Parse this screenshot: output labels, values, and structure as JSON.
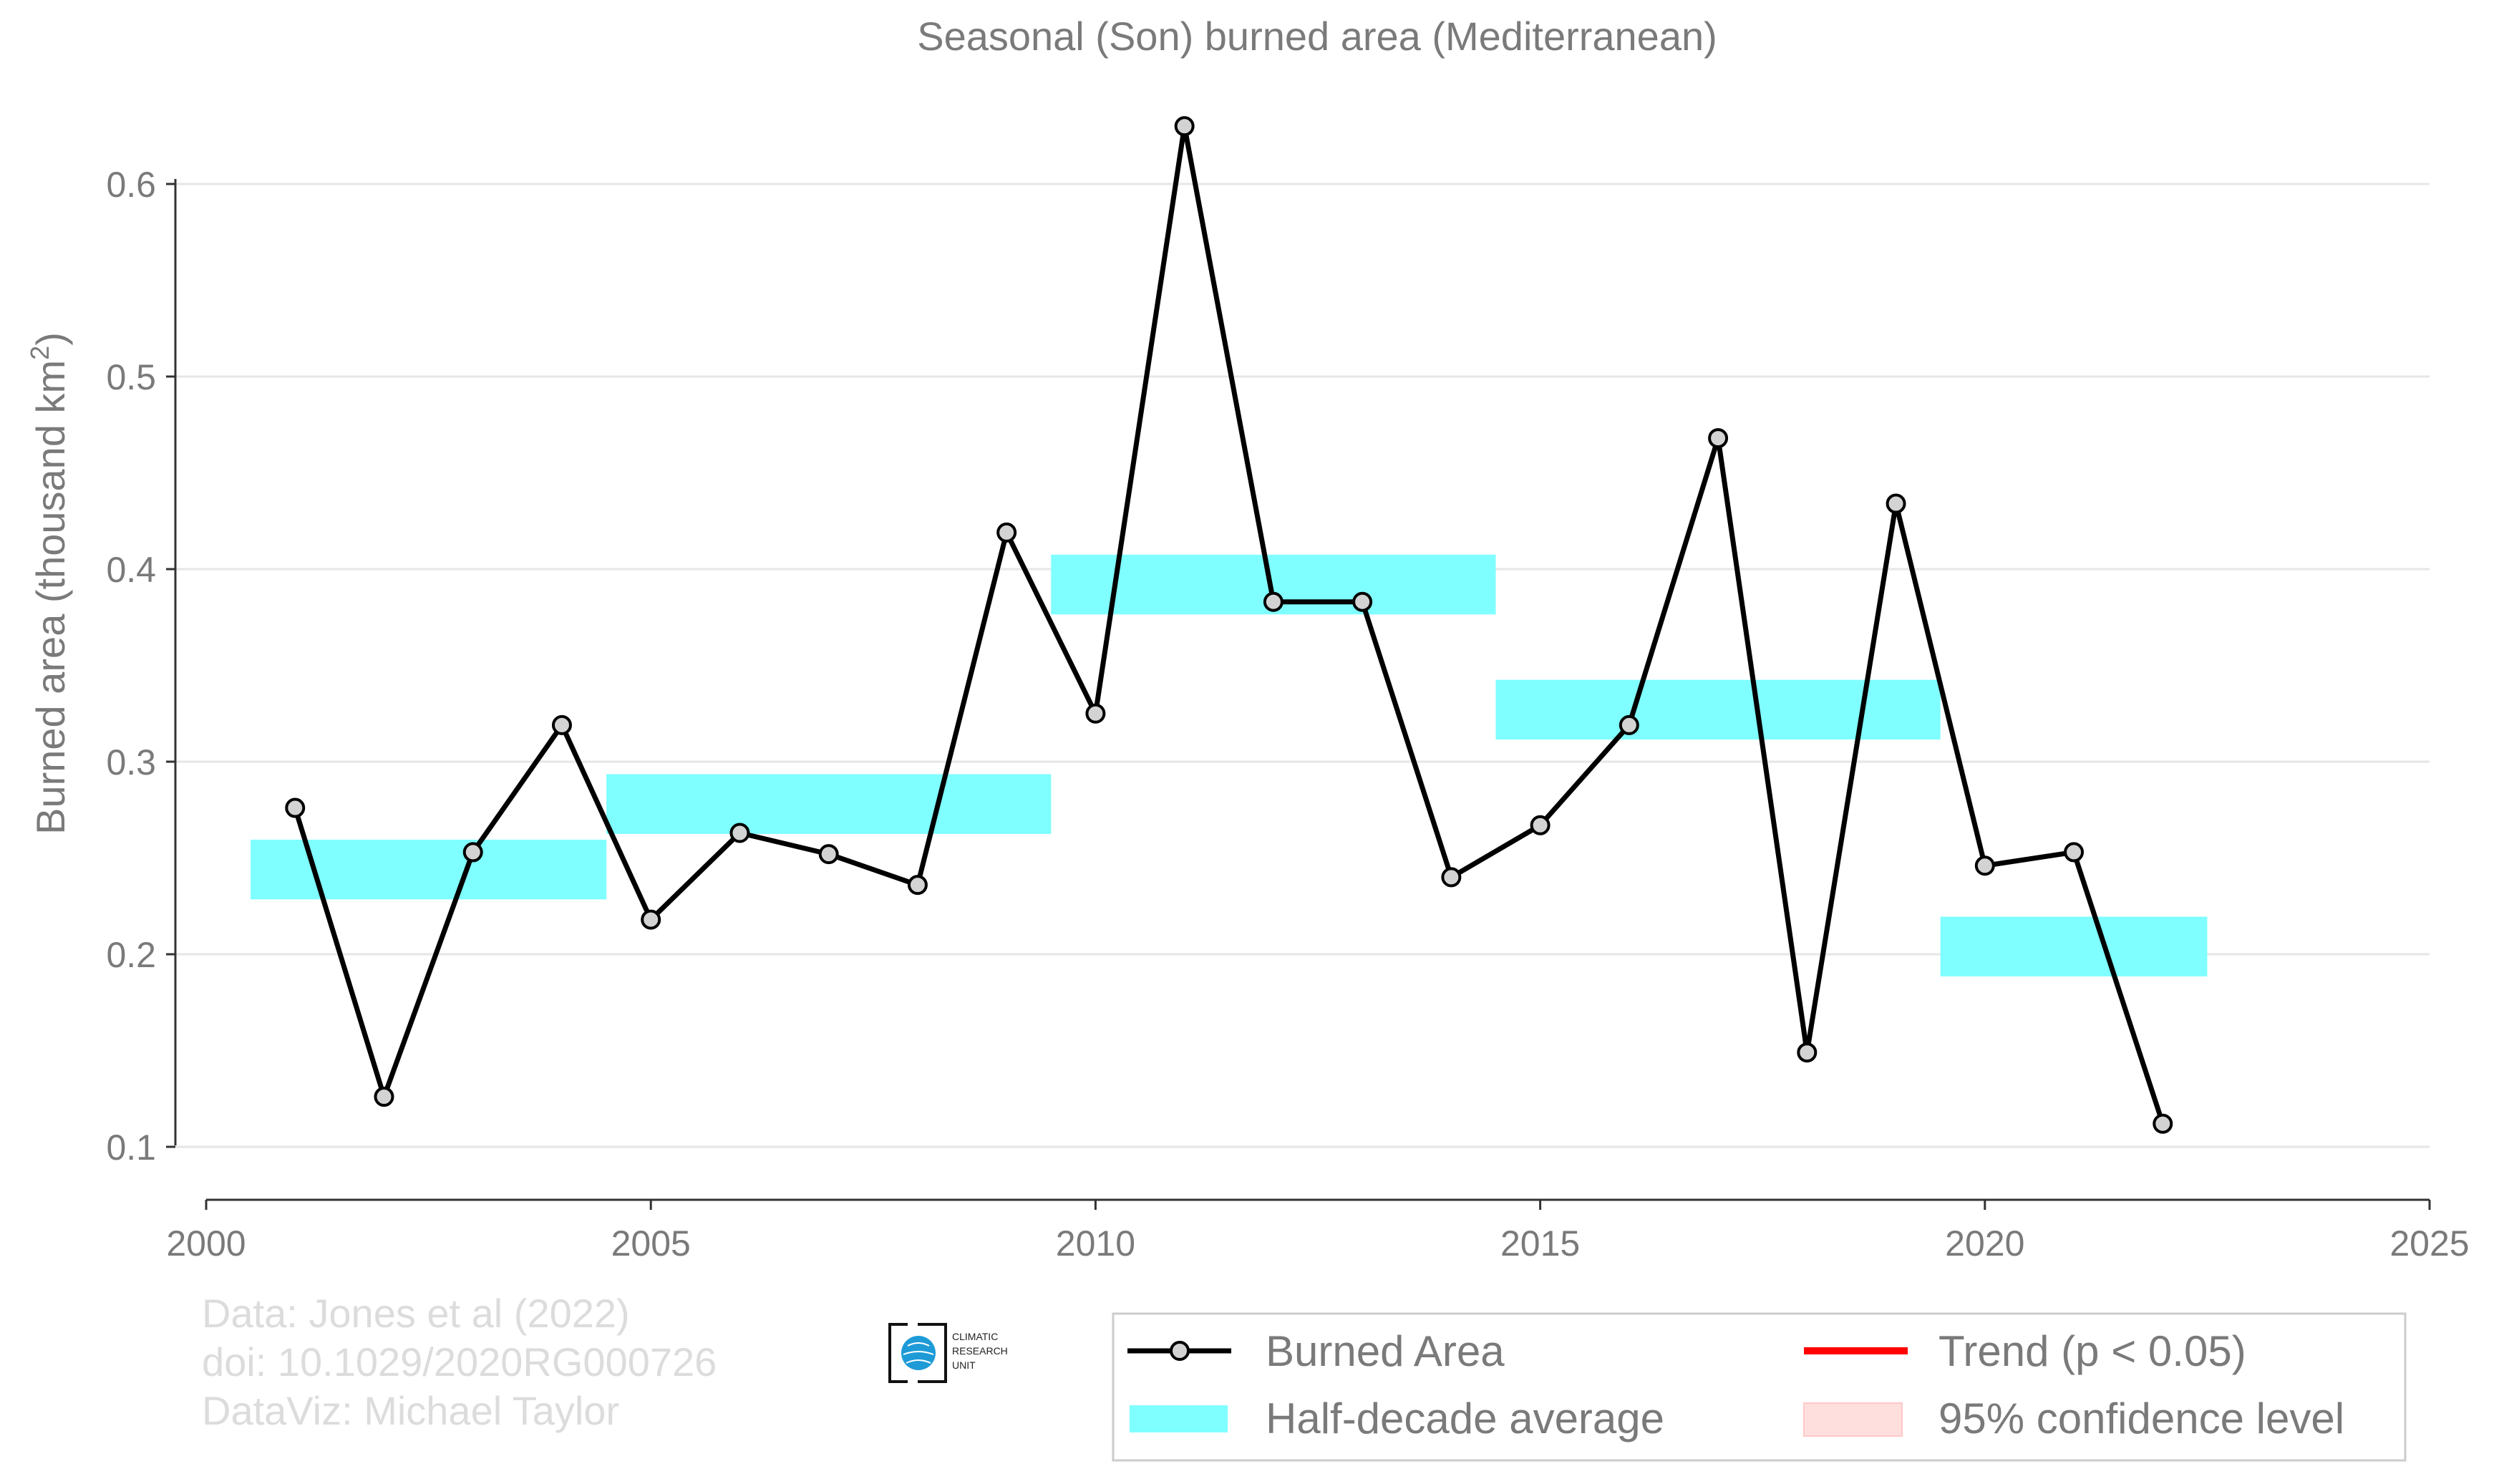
{
  "chart_data": {
    "type": "line",
    "title": "Seasonal (Son) burned area (Mediterranean)",
    "xlabel": "",
    "ylabel": "Burned area (thousand km",
    "ylabel_sup": "2",
    "ylabel_close": ")",
    "xlim": [
      2000,
      2025
    ],
    "ylim": [
      0.07,
      0.67
    ],
    "x_ticks": [
      2000,
      2005,
      2010,
      2015,
      2020,
      2025
    ],
    "y_ticks": [
      0.1,
      0.2,
      0.3,
      0.4,
      0.5,
      0.6
    ],
    "y_tick_labels": [
      "0.1",
      "0.2",
      "0.3",
      "0.4",
      "0.5",
      "0.6"
    ],
    "grid": "horizontal",
    "series": [
      {
        "name": "Burned Area",
        "color": "#000000",
        "marker_fill": "#d3d3d3",
        "x": [
          2001,
          2002,
          2003,
          2004,
          2005,
          2006,
          2007,
          2008,
          2009,
          2010,
          2011,
          2012,
          2013,
          2014,
          2015,
          2016,
          2017,
          2018,
          2019,
          2020,
          2021,
          2022
        ],
        "y": [
          0.276,
          0.126,
          0.253,
          0.319,
          0.218,
          0.263,
          0.252,
          0.236,
          0.419,
          0.325,
          0.63,
          0.383,
          0.383,
          0.24,
          0.267,
          0.319,
          0.468,
          0.149,
          0.434,
          0.246,
          0.253,
          0.112
        ]
      }
    ],
    "half_decade_average": {
      "name": "Half-decade average",
      "color": "#7fffff",
      "segments": [
        {
          "x_start": 2000.5,
          "x_end": 2004.5,
          "value": 0.244
        },
        {
          "x_start": 2004.5,
          "x_end": 2009.5,
          "value": 0.278
        },
        {
          "x_start": 2009.5,
          "x_end": 2014.5,
          "value": 0.392
        },
        {
          "x_start": 2014.5,
          "x_end": 2019.5,
          "value": 0.327
        },
        {
          "x_start": 2019.5,
          "x_end": 2022.5,
          "value": 0.204
        }
      ]
    },
    "legend": {
      "placement": "bottom-right",
      "items": [
        {
          "label": "Burned Area",
          "kind": "line-marker",
          "color": "#000000"
        },
        {
          "label": "Half-decade average",
          "kind": "band",
          "color": "#7fffff"
        },
        {
          "label": "Trend (p < 0.05)",
          "kind": "line",
          "color": "#ff0000"
        },
        {
          "label": "95% confidence level",
          "kind": "band",
          "color": "#ffdede"
        }
      ]
    }
  },
  "credits": [
    "Data: Jones et al (2022)",
    "doi: 10.1029/2020RG000726",
    "DataViz: Michael Taylor"
  ],
  "logo": {
    "lines": [
      "CLIMATIC",
      "RESEARCH",
      "UNIT"
    ],
    "globe_color": "#1e9bd7"
  }
}
